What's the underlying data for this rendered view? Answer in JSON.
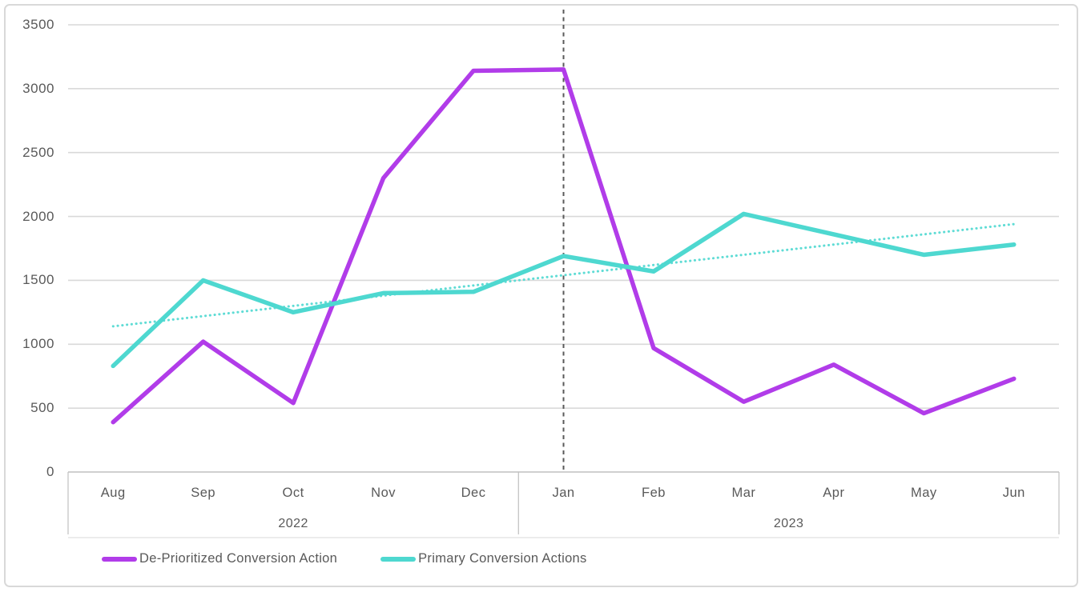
{
  "chart_data": {
    "type": "line",
    "title": "",
    "xlabel": "",
    "ylabel": "",
    "ylim": [
      0,
      3500
    ],
    "y_ticks": [
      3500,
      3000,
      2500,
      2000,
      1500,
      1000,
      500,
      0
    ],
    "grid": true,
    "legend_position": "bottom-left",
    "categories": [
      "Aug",
      "Sep",
      "Oct",
      "Nov",
      "Dec",
      "Jan",
      "Feb",
      "Mar",
      "Apr",
      "May",
      "Jun"
    ],
    "year_groups": [
      {
        "label": "2022",
        "start": 0,
        "end": 4
      },
      {
        "label": "2023",
        "start": 5,
        "end": 10
      }
    ],
    "series": [
      {
        "name": "De-Prioritized Conversion Action",
        "color": "#b13ce9",
        "style": "solid",
        "values": [
          390,
          1020,
          540,
          2300,
          3140,
          3150,
          970,
          550,
          840,
          460,
          730
        ]
      },
      {
        "name": "Primary Conversion Actions",
        "color": "#4ed8d0",
        "style": "solid",
        "values": [
          830,
          1500,
          1250,
          1400,
          1410,
          1690,
          1570,
          2020,
          1860,
          1700,
          1780
        ]
      }
    ],
    "trendline": {
      "name": "Primary Conversion Actions trend",
      "color": "#5fdcd5",
      "style": "dotted",
      "values": [
        1140,
        1220,
        1300,
        1380,
        1460,
        1540,
        1620,
        1700,
        1780,
        1860,
        1940
      ]
    },
    "marker_line": {
      "category": "Jan",
      "category_index": 5,
      "style": "dashed",
      "color": "#595959"
    }
  },
  "legend": {
    "items": [
      {
        "label": "De-Prioritized Conversion Action",
        "color": "#b13ce9"
      },
      {
        "label": "Primary Conversion Actions",
        "color": "#4ed8d0"
      }
    ]
  },
  "colors": {
    "background": "#ffffff",
    "card_border": "#d9d9d9",
    "gridline": "#d9d9d9",
    "axis_line": "#bfbfbf",
    "axis_text": "#595959"
  }
}
